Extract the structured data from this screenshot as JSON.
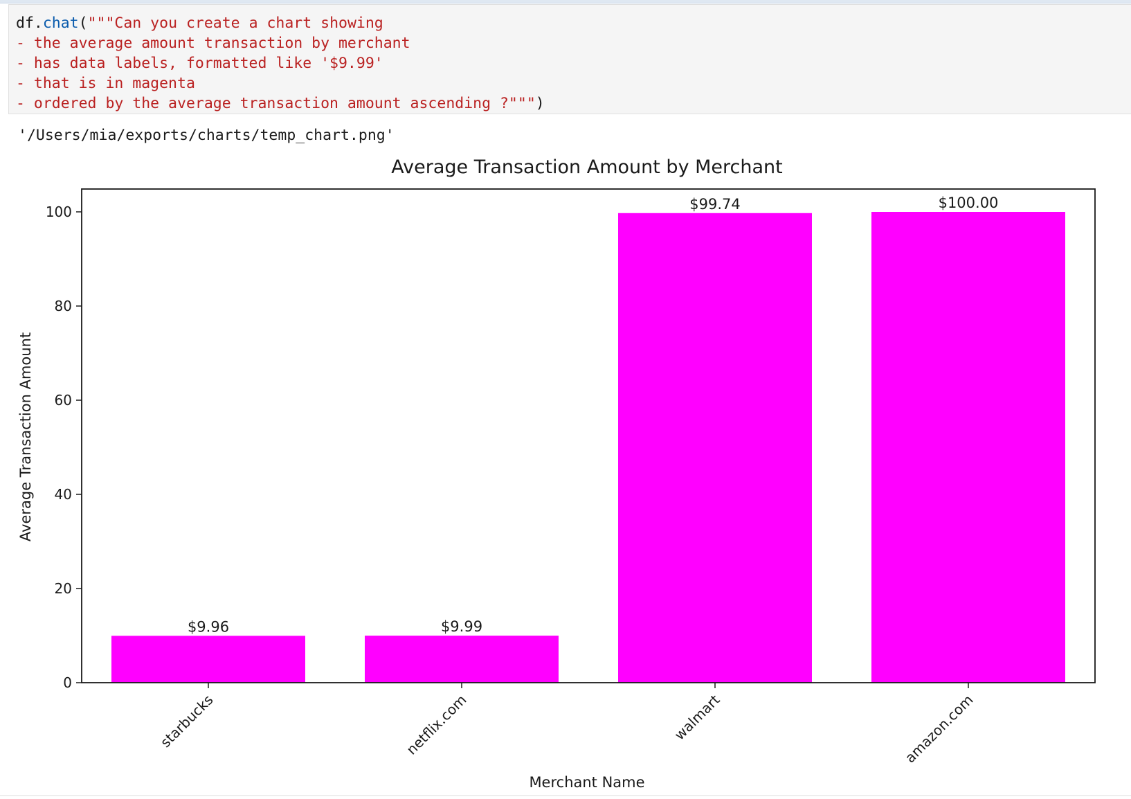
{
  "notebook": {
    "input_cell": {
      "var": "df",
      "dot": ".",
      "method": "chat",
      "open": "(",
      "string_lines": [
        "\"\"\"Can you create a chart showing",
        "- the average amount transaction by merchant",
        "- has data labels, formatted like '$9.99'",
        "- that is in magenta",
        "- ordered by the average transaction amount ascending ?\"\"\""
      ],
      "close": ")"
    },
    "output_text": "'/Users/mia/exports/charts/temp_chart.png'"
  },
  "chart_data": {
    "type": "bar",
    "title": "Average Transaction Amount by Merchant",
    "xlabel": "Merchant Name",
    "ylabel": "Average Transaction Amount",
    "categories": [
      "starbucks",
      "netflix.com",
      "walmart",
      "amazon.com"
    ],
    "values": [
      9.96,
      9.99,
      99.74,
      100.0
    ],
    "data_labels": [
      "$9.96",
      "$9.99",
      "$99.74",
      "$100.00"
    ],
    "yticks": [
      0,
      20,
      40,
      60,
      80,
      100
    ],
    "ytick_labels": [
      "0",
      "20",
      "40",
      "60",
      "80",
      "100"
    ],
    "ylim": [
      0,
      105
    ],
    "grid": false,
    "legend": "none",
    "bar_color": "#ff00ff",
    "xtick_rotation": "45"
  }
}
